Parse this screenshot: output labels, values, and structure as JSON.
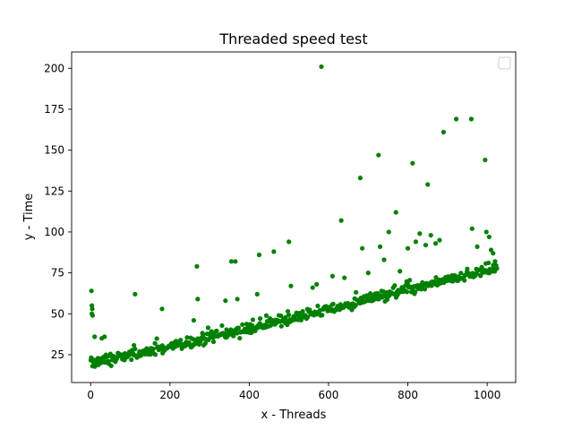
{
  "chart_data": {
    "type": "scatter",
    "title": "Threaded speed test",
    "xlabel": "x - Threads",
    "ylabel": "y - Time",
    "xlim": [
      -48,
      1072
    ],
    "ylim": [
      8,
      210
    ],
    "xticks": [
      0,
      200,
      400,
      600,
      800,
      1000
    ],
    "yticks": [
      25,
      50,
      75,
      100,
      125,
      150,
      175,
      200
    ],
    "grid": false,
    "legend": {
      "placement": "top-right",
      "entries": [
        ""
      ]
    },
    "series": [
      {
        "name": "",
        "color": "#008000",
        "marker": "circle",
        "trend": {
          "x_start": 0,
          "x_end": 1024,
          "y_start": 20,
          "y_end": 78,
          "noise": 2.2,
          "step": 2
        },
        "outliers": [
          {
            "x": 2,
            "y": 64
          },
          {
            "x": 3,
            "y": 55
          },
          {
            "x": 4,
            "y": 53
          },
          {
            "x": 3,
            "y": 50
          },
          {
            "x": 5,
            "y": 49
          },
          {
            "x": 10,
            "y": 36
          },
          {
            "x": 28,
            "y": 35
          },
          {
            "x": 35,
            "y": 36
          },
          {
            "x": 112,
            "y": 62
          },
          {
            "x": 180,
            "y": 53
          },
          {
            "x": 260,
            "y": 46
          },
          {
            "x": 268,
            "y": 79
          },
          {
            "x": 270,
            "y": 59
          },
          {
            "x": 340,
            "y": 58
          },
          {
            "x": 355,
            "y": 82
          },
          {
            "x": 365,
            "y": 82
          },
          {
            "x": 370,
            "y": 59
          },
          {
            "x": 420,
            "y": 62
          },
          {
            "x": 425,
            "y": 86
          },
          {
            "x": 462,
            "y": 88
          },
          {
            "x": 500,
            "y": 94
          },
          {
            "x": 505,
            "y": 67
          },
          {
            "x": 560,
            "y": 66
          },
          {
            "x": 570,
            "y": 68
          },
          {
            "x": 582,
            "y": 201
          },
          {
            "x": 610,
            "y": 73
          },
          {
            "x": 632,
            "y": 107
          },
          {
            "x": 640,
            "y": 72
          },
          {
            "x": 680,
            "y": 133
          },
          {
            "x": 685,
            "y": 90
          },
          {
            "x": 700,
            "y": 75
          },
          {
            "x": 726,
            "y": 147
          },
          {
            "x": 730,
            "y": 91
          },
          {
            "x": 740,
            "y": 83
          },
          {
            "x": 752,
            "y": 100
          },
          {
            "x": 770,
            "y": 112
          },
          {
            "x": 780,
            "y": 76
          },
          {
            "x": 800,
            "y": 90
          },
          {
            "x": 812,
            "y": 142
          },
          {
            "x": 820,
            "y": 94
          },
          {
            "x": 830,
            "y": 99
          },
          {
            "x": 845,
            "y": 92
          },
          {
            "x": 850,
            "y": 129
          },
          {
            "x": 858,
            "y": 98
          },
          {
            "x": 870,
            "y": 93
          },
          {
            "x": 880,
            "y": 95
          },
          {
            "x": 890,
            "y": 161
          },
          {
            "x": 922,
            "y": 169
          },
          {
            "x": 960,
            "y": 169
          },
          {
            "x": 962,
            "y": 102
          },
          {
            "x": 975,
            "y": 91
          },
          {
            "x": 995,
            "y": 144
          },
          {
            "x": 998,
            "y": 100
          },
          {
            "x": 1005,
            "y": 97
          },
          {
            "x": 1010,
            "y": 89
          },
          {
            "x": 1015,
            "y": 87
          },
          {
            "x": 1020,
            "y": 82
          }
        ]
      }
    ]
  }
}
